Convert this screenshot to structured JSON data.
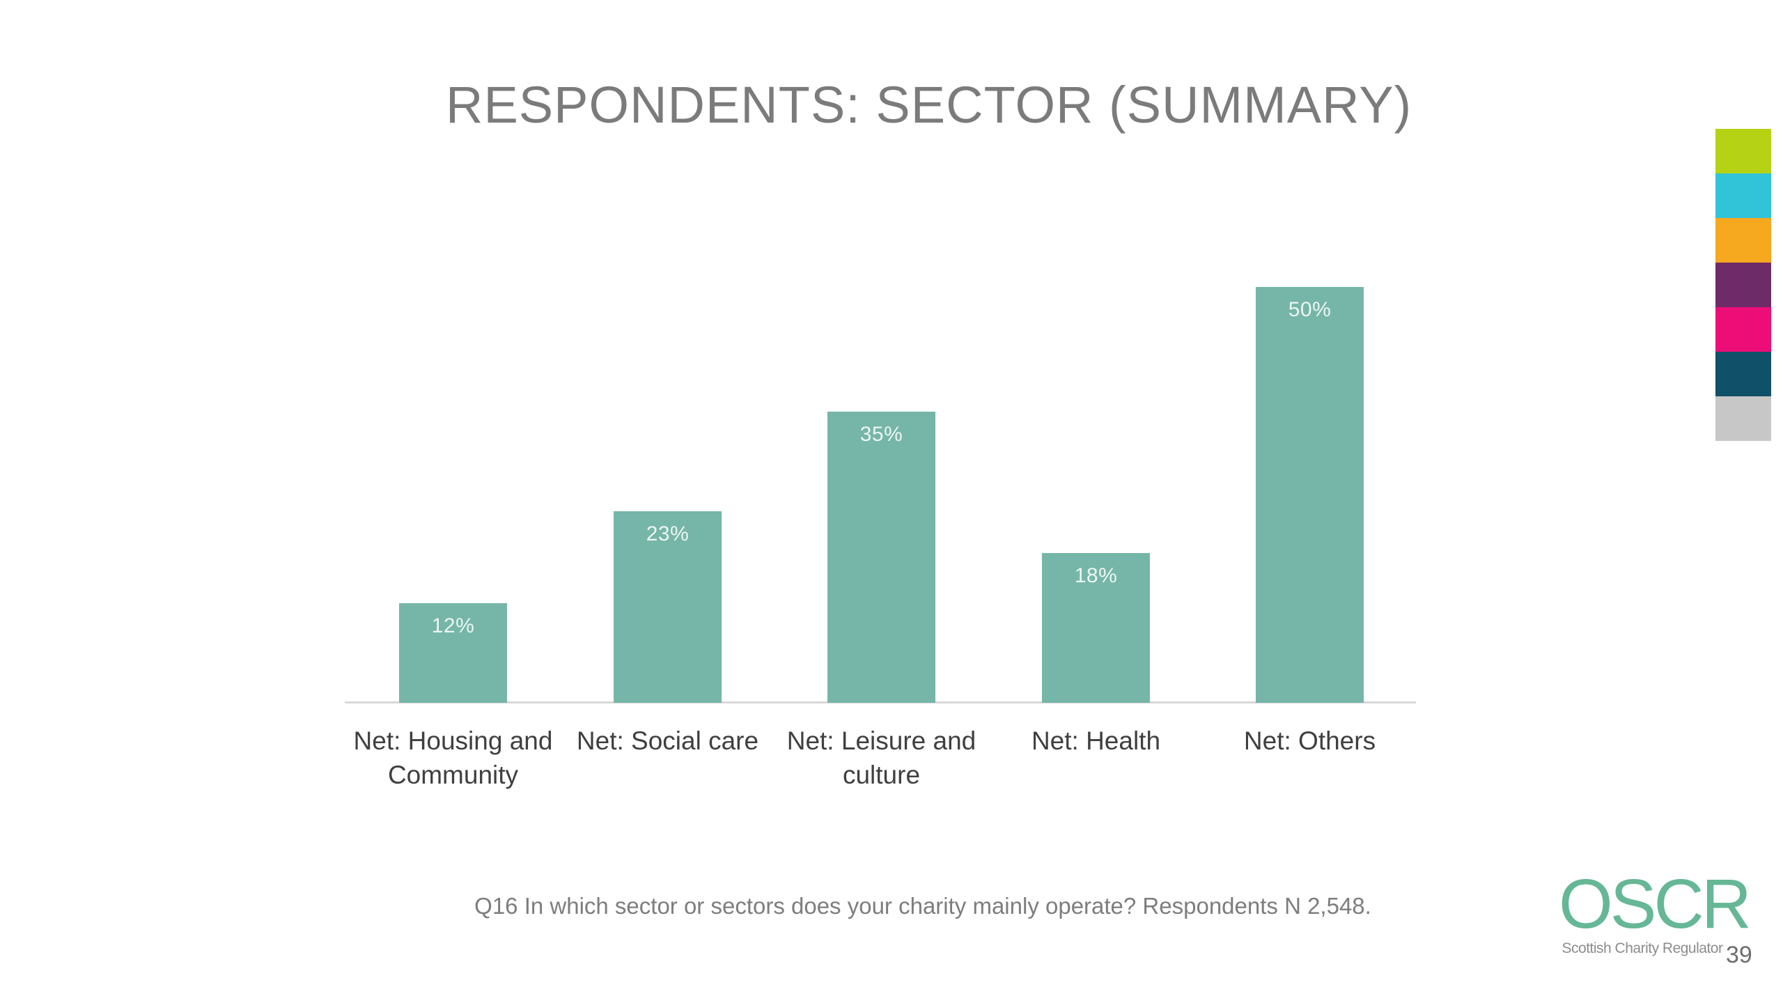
{
  "slide": {
    "title": "RESPONDENTS: SECTOR (SUMMARY)",
    "footnote": "Q16 In which sector or sectors does your charity mainly operate? Respondents N 2,548.",
    "page_number": "39"
  },
  "logo": {
    "name": "OSCR",
    "tagline": "Scottish Charity Regulator",
    "color": "#65b795"
  },
  "palette_strip": [
    "#b6d214",
    "#31c3d8",
    "#f6a81f",
    "#6d2b68",
    "#ec0d77",
    "#115069",
    "#c7c7c7"
  ],
  "chart_data": {
    "type": "bar",
    "title": "RESPONDENTS: SECTOR (SUMMARY)",
    "categories": [
      "Net: Housing and Community",
      "Net: Social care",
      "Net: Leisure and culture",
      "Net: Health",
      "Net: Others"
    ],
    "values": [
      12,
      23,
      35,
      18,
      50
    ],
    "data_labels": [
      "12%",
      "23%",
      "35%",
      "18%",
      "50%"
    ],
    "value_suffix": "%",
    "xlabel": "",
    "ylabel": "",
    "ylim": [
      0,
      84
    ],
    "gridlines": false,
    "legend": false,
    "bar_color": "#75b6a8",
    "value_label_color": "#edf5f2",
    "axis_line_color": "#d9d9d9"
  }
}
